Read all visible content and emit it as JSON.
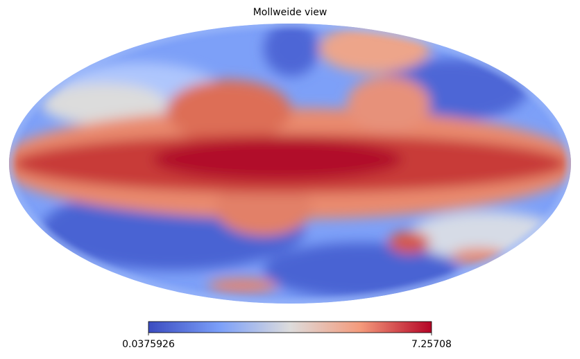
{
  "title": "Mollweide view",
  "colorbar": {
    "min": 0.0375926,
    "max": 7.25708
  }
}
